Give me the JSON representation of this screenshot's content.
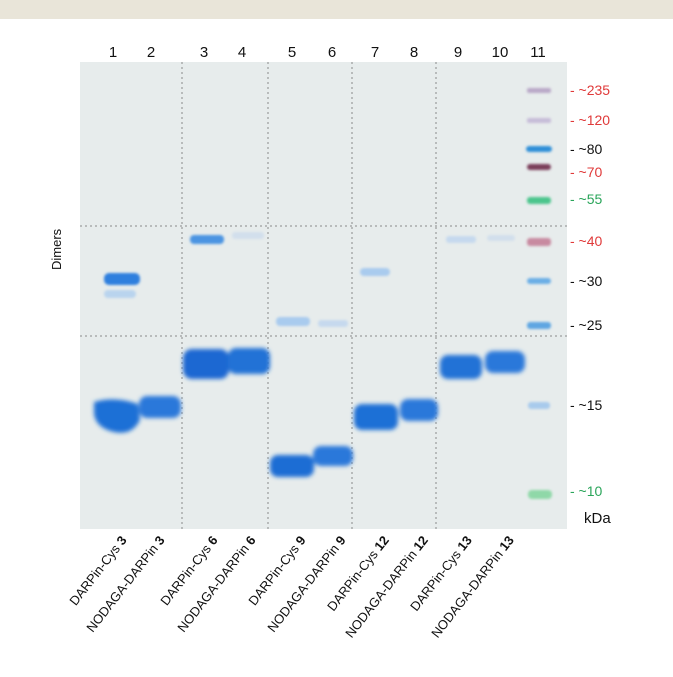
{
  "lanes": [
    "1",
    "2",
    "3",
    "4",
    "5",
    "6",
    "7",
    "8",
    "9",
    "10",
    "11"
  ],
  "markers": [
    {
      "label": "- ~235",
      "color": "#e03a3a"
    },
    {
      "label": "- ~120",
      "color": "#e03a3a"
    },
    {
      "label": "- ~80",
      "color": "#111111"
    },
    {
      "label": "- ~70",
      "color": "#e03a3a"
    },
    {
      "label": "- ~55",
      "color": "#2aa55a"
    },
    {
      "label": "- ~40",
      "color": "#e03a3a"
    },
    {
      "label": "- ~30",
      "color": "#111111"
    },
    {
      "label": "- ~25",
      "color": "#111111"
    },
    {
      "label": "- ~15",
      "color": "#111111"
    },
    {
      "label": "- ~10",
      "color": "#2aa55a"
    }
  ],
  "unit": "kDa",
  "side_label": "Dimers",
  "samples": [
    {
      "name": "DARPin-Cys ",
      "num": "3"
    },
    {
      "name": "NODAGA-DARPin ",
      "num": "3"
    },
    {
      "name": "DARPin-Cys ",
      "num": "6"
    },
    {
      "name": "NODAGA-DARPin ",
      "num": "6"
    },
    {
      "name": "DARPin-Cys ",
      "num": "9"
    },
    {
      "name": "NODAGA-DARPin ",
      "num": "9"
    },
    {
      "name": "DARPin-Cys ",
      "num": "12"
    },
    {
      "name": "NODAGA-DARPin ",
      "num": "12"
    },
    {
      "name": "DARPin-Cys ",
      "num": "13"
    },
    {
      "name": "NODAGA-DARPin ",
      "num": "13"
    }
  ],
  "colors": {
    "band": "#1f6fd6",
    "gel": "#e7ecec"
  }
}
